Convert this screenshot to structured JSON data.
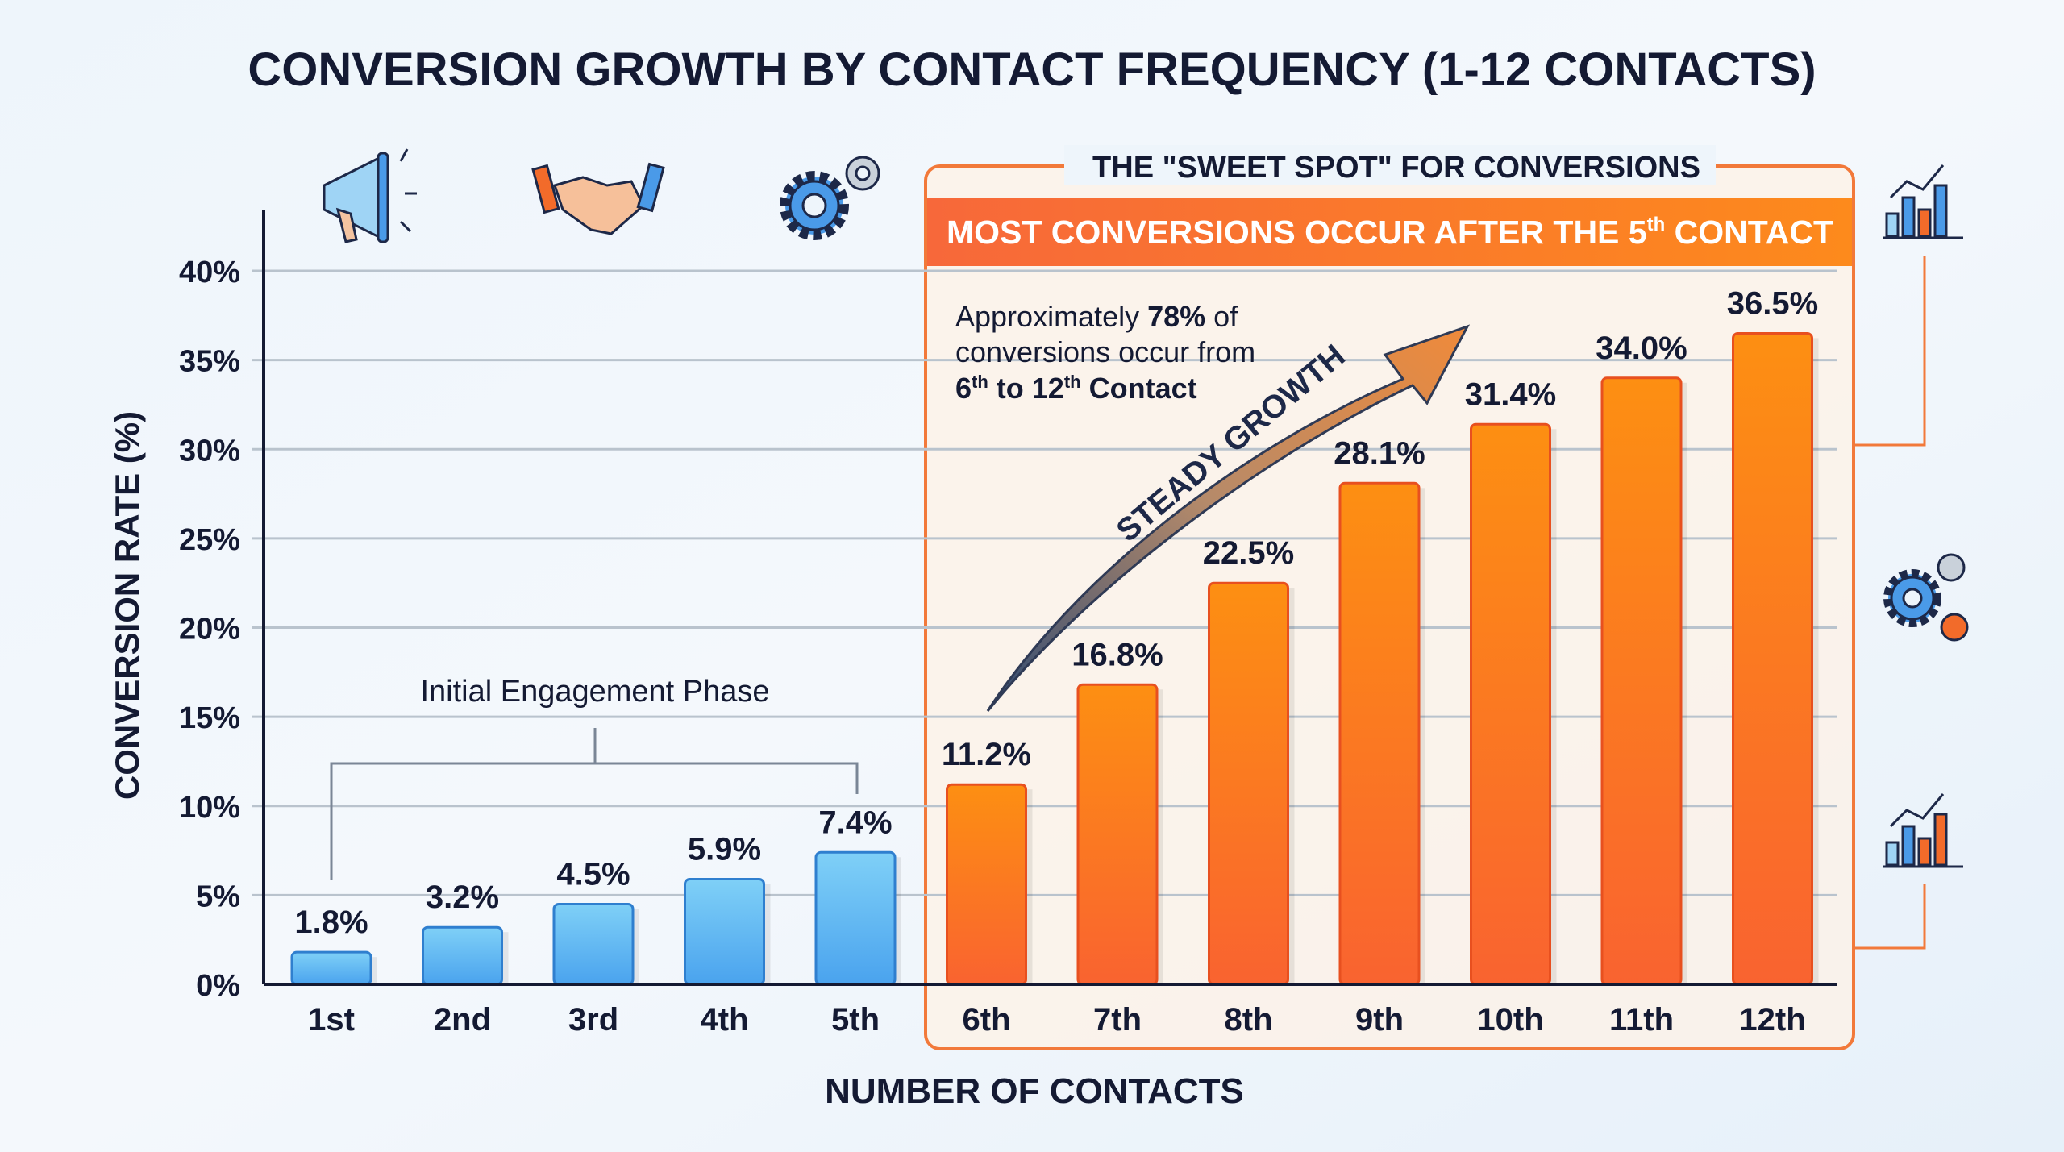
{
  "chart_data": {
    "type": "bar",
    "title": "CONVERSION GROWTH BY CONTACT FREQUENCY (1-12 CONTACTS)",
    "xlabel": "NUMBER OF CONTACTS",
    "ylabel": "CONVERSION RATE (%)",
    "ylim": [
      0,
      40
    ],
    "yticks": [
      "0%",
      "5%",
      "10%",
      "15%",
      "20%",
      "25%",
      "30%",
      "35%",
      "40%"
    ],
    "grid": true,
    "categories": [
      "1st",
      "2nd",
      "3rd",
      "4th",
      "5th",
      "6th",
      "7th",
      "8th",
      "9th",
      "10th",
      "11th",
      "12th"
    ],
    "values": [
      1.8,
      3.2,
      4.5,
      5.9,
      7.4,
      11.2,
      16.8,
      22.5,
      28.1,
      31.4,
      34.0,
      36.5
    ],
    "value_labels": [
      "1.8%",
      "3.2%",
      "4.5%",
      "5.9%",
      "7.4%",
      "11.2%",
      "16.8%",
      "22.5%",
      "28.1%",
      "31.4%",
      "34.0%",
      "36.5%"
    ],
    "colors": {
      "early": "#5bb8f0",
      "sweet_spot": "#fb7d1f",
      "accent": "#f26b2a",
      "text": "#141a33"
    },
    "annotations": {
      "initial_phase": "Initial Engagement Phase",
      "sweet_spot_title": "THE \"SWEET SPOT\" FOR CONVERSIONS",
      "banner_main": "MOST CONVERSIONS OCCUR AFTER THE 5",
      "banner_sup": "th",
      "banner_end": " CONTACT",
      "note_line1_a": "Approximately ",
      "note_line1_b": "78%",
      "note_line1_c": " of",
      "note_line2": "conversions occur from",
      "note_line3_a": "6",
      "note_line3_sup1": "th",
      "note_line3_b": " to 12",
      "note_line3_sup2": "th",
      "note_line3_c": " Contact",
      "arrow_label": "STEADY GROWTH"
    },
    "icons": [
      "megaphone-icon",
      "handshake-icon",
      "gears-icon",
      "bar-chart-icon",
      "gears-icon",
      "bar-chart-icon"
    ]
  }
}
